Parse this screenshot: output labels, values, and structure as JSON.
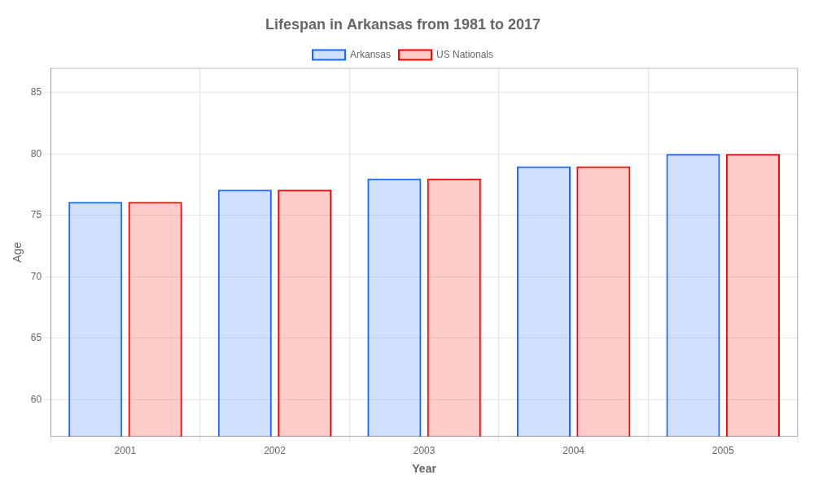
{
  "chart_data": {
    "type": "bar",
    "title": "Lifespan in Arkansas from 1981 to 2017",
    "xlabel": "Year",
    "ylabel": "Age",
    "categories": [
      "2001",
      "2002",
      "2003",
      "2004",
      "2005"
    ],
    "series": [
      {
        "name": "Arkansas",
        "color": "#1a66ff",
        "values": [
          76.1,
          77.1,
          78.0,
          79.0,
          80.0
        ]
      },
      {
        "name": "US Nationals",
        "color": "#ff0000",
        "values": [
          76.1,
          77.1,
          78.0,
          79.0,
          80.0
        ]
      }
    ],
    "ylim": [
      57,
      87
    ],
    "yticks": [
      60,
      65,
      70,
      75,
      80,
      85
    ],
    "grid": true,
    "legend": "top"
  }
}
